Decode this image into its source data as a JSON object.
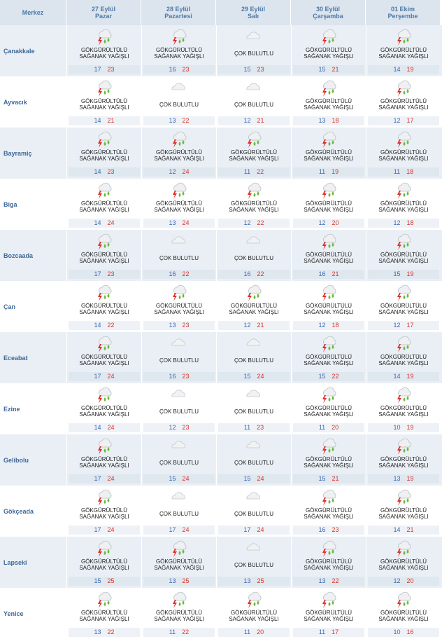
{
  "header": {
    "city_label": "Merkez",
    "days": [
      {
        "date": "27 Eylül",
        "weekday": "Pazar"
      },
      {
        "date": "28 Eylül",
        "weekday": "Pazartesi"
      },
      {
        "date": "29 Eylül",
        "weekday": "Salı"
      },
      {
        "date": "30 Eylül",
        "weekday": "Çarşamba"
      },
      {
        "date": "01 Ekim",
        "weekday": "Perşembe"
      }
    ]
  },
  "rows": [
    {
      "city": "Çanakkale",
      "forecasts": [
        {
          "condition": "GÖKGÜRÜLTÜLÜ\nSAĞANAK YAĞIŞLI",
          "min": 17,
          "max": 23
        },
        {
          "condition": "GÖKGÜRÜLTÜLÜ\nSAĞANAK YAĞIŞLI",
          "min": 16,
          "max": 23
        },
        {
          "condition": "ÇOK BULUTLU",
          "min": 15,
          "max": 23
        },
        {
          "condition": "GÖKGÜRÜLTÜLÜ\nSAĞANAK YAĞIŞLI",
          "min": 15,
          "max": 21
        },
        {
          "condition": "GÖKGÜRÜLTÜLÜ\nSAĞANAK YAĞIŞLI",
          "min": 14,
          "max": 19
        }
      ]
    },
    {
      "city": "Ayvacık",
      "forecasts": [
        {
          "condition": "GÖKGÜRÜLTÜLÜ\nSAĞANAK YAĞIŞLI",
          "min": 14,
          "max": 21
        },
        {
          "condition": "ÇOK BULUTLU",
          "min": 13,
          "max": 22
        },
        {
          "condition": "ÇOK BULUTLU",
          "min": 12,
          "max": 21
        },
        {
          "condition": "GÖKGÜRÜLTÜLÜ\nSAĞANAK YAĞIŞLI",
          "min": 13,
          "max": 18
        },
        {
          "condition": "GÖKGÜRÜLTÜLÜ\nSAĞANAK YAĞIŞLI",
          "min": 12,
          "max": 17
        }
      ]
    },
    {
      "city": "Bayramiç",
      "forecasts": [
        {
          "condition": "GÖKGÜRÜLTÜLÜ\nSAĞANAK YAĞIŞLI",
          "min": 14,
          "max": 23
        },
        {
          "condition": "GÖKGÜRÜLTÜLÜ\nSAĞANAK YAĞIŞLI",
          "min": 12,
          "max": 24
        },
        {
          "condition": "GÖKGÜRÜLTÜLÜ\nSAĞANAK YAĞIŞLI",
          "min": 11,
          "max": 22
        },
        {
          "condition": "GÖKGÜRÜLTÜLÜ\nSAĞANAK YAĞIŞLI",
          "min": 11,
          "max": 19
        },
        {
          "condition": "GÖKGÜRÜLTÜLÜ\nSAĞANAK YAĞIŞLI",
          "min": 11,
          "max": 18
        }
      ]
    },
    {
      "city": "Biga",
      "forecasts": [
        {
          "condition": "GÖKGÜRÜLTÜLÜ\nSAĞANAK YAĞIŞLI",
          "min": 14,
          "max": 24
        },
        {
          "condition": "GÖKGÜRÜLTÜLÜ\nSAĞANAK YAĞIŞLI",
          "min": 13,
          "max": 24
        },
        {
          "condition": "GÖKGÜRÜLTÜLÜ\nSAĞANAK YAĞIŞLI",
          "min": 12,
          "max": 22
        },
        {
          "condition": "GÖKGÜRÜLTÜLÜ\nSAĞANAK YAĞIŞLI",
          "min": 12,
          "max": 20
        },
        {
          "condition": "GÖKGÜRÜLTÜLÜ\nSAĞANAK YAĞIŞLI",
          "min": 12,
          "max": 18
        }
      ]
    },
    {
      "city": "Bozcaada",
      "forecasts": [
        {
          "condition": "GÖKGÜRÜLTÜLÜ\nSAĞANAK YAĞIŞLI",
          "min": 17,
          "max": 23
        },
        {
          "condition": "ÇOK BULUTLU",
          "min": 16,
          "max": 22
        },
        {
          "condition": "ÇOK BULUTLU",
          "min": 16,
          "max": 22
        },
        {
          "condition": "GÖKGÜRÜLTÜLÜ\nSAĞANAK YAĞIŞLI",
          "min": 16,
          "max": 21
        },
        {
          "condition": "GÖKGÜRÜLTÜLÜ\nSAĞANAK YAĞIŞLI",
          "min": 15,
          "max": 19
        }
      ]
    },
    {
      "city": "Çan",
      "forecasts": [
        {
          "condition": "GÖKGÜRÜLTÜLÜ\nSAĞANAK YAĞIŞLI",
          "min": 14,
          "max": 22
        },
        {
          "condition": "GÖKGÜRÜLTÜLÜ\nSAĞANAK YAĞIŞLI",
          "min": 13,
          "max": 23
        },
        {
          "condition": "GÖKGÜRÜLTÜLÜ\nSAĞANAK YAĞIŞLI",
          "min": 12,
          "max": 21
        },
        {
          "condition": "GÖKGÜRÜLTÜLÜ\nSAĞANAK YAĞIŞLI",
          "min": 12,
          "max": 18
        },
        {
          "condition": "GÖKGÜRÜLTÜLÜ\nSAĞANAK YAĞIŞLI",
          "min": 12,
          "max": 17
        }
      ]
    },
    {
      "city": "Eceabat",
      "forecasts": [
        {
          "condition": "GÖKGÜRÜLTÜLÜ\nSAĞANAK YAĞIŞLI",
          "min": 17,
          "max": 24
        },
        {
          "condition": "ÇOK BULUTLU",
          "min": 16,
          "max": 23
        },
        {
          "condition": "ÇOK BULUTLU",
          "min": 15,
          "max": 24
        },
        {
          "condition": "GÖKGÜRÜLTÜLÜ\nSAĞANAK YAĞIŞLI",
          "min": 15,
          "max": 22
        },
        {
          "condition": "GÖKGÜRÜLTÜLÜ\nSAĞANAK YAĞIŞLI",
          "min": 14,
          "max": 19
        }
      ]
    },
    {
      "city": "Ezine",
      "forecasts": [
        {
          "condition": "GÖKGÜRÜLTÜLÜ\nSAĞANAK YAĞIŞLI",
          "min": 14,
          "max": 24
        },
        {
          "condition": "ÇOK BULUTLU",
          "min": 12,
          "max": 23
        },
        {
          "condition": "ÇOK BULUTLU",
          "min": 11,
          "max": 23
        },
        {
          "condition": "GÖKGÜRÜLTÜLÜ\nSAĞANAK YAĞIŞLI",
          "min": 11,
          "max": 20
        },
        {
          "condition": "GÖKGÜRÜLTÜLÜ\nSAĞANAK YAĞIŞLI",
          "min": 10,
          "max": 19
        }
      ]
    },
    {
      "city": "Gelibolu",
      "forecasts": [
        {
          "condition": "GÖKGÜRÜLTÜLÜ\nSAĞANAK YAĞIŞLI",
          "min": 17,
          "max": 24
        },
        {
          "condition": "ÇOK BULUTLU",
          "min": 15,
          "max": 24
        },
        {
          "condition": "ÇOK BULUTLU",
          "min": 15,
          "max": 24
        },
        {
          "condition": "GÖKGÜRÜLTÜLÜ\nSAĞANAK YAĞIŞLI",
          "min": 15,
          "max": 21
        },
        {
          "condition": "GÖKGÜRÜLTÜLÜ\nSAĞANAK YAĞIŞLI",
          "min": 13,
          "max": 19
        }
      ]
    },
    {
      "city": "Gökçeada",
      "forecasts": [
        {
          "condition": "GÖKGÜRÜLTÜLÜ\nSAĞANAK YAĞIŞLI",
          "min": 17,
          "max": 24
        },
        {
          "condition": "ÇOK BULUTLU",
          "min": 17,
          "max": 24
        },
        {
          "condition": "ÇOK BULUTLU",
          "min": 17,
          "max": 24
        },
        {
          "condition": "GÖKGÜRÜLTÜLÜ\nSAĞANAK YAĞIŞLI",
          "min": 16,
          "max": 23
        },
        {
          "condition": "GÖKGÜRÜLTÜLÜ\nSAĞANAK YAĞIŞLI",
          "min": 14,
          "max": 21
        }
      ]
    },
    {
      "city": "Lapseki",
      "forecasts": [
        {
          "condition": "GÖKGÜRÜLTÜLÜ\nSAĞANAK YAĞIŞLI",
          "min": 15,
          "max": 25
        },
        {
          "condition": "GÖKGÜRÜLTÜLÜ\nSAĞANAK YAĞIŞLI",
          "min": 13,
          "max": 25
        },
        {
          "condition": "ÇOK BULUTLU",
          "min": 13,
          "max": 25
        },
        {
          "condition": "GÖKGÜRÜLTÜLÜ\nSAĞANAK YAĞIŞLI",
          "min": 13,
          "max": 22
        },
        {
          "condition": "GÖKGÜRÜLTÜLÜ\nSAĞANAK YAĞIŞLI",
          "min": 12,
          "max": 20
        }
      ]
    },
    {
      "city": "Yenice",
      "forecasts": [
        {
          "condition": "GÖKGÜRÜLTÜLÜ\nSAĞANAK YAĞIŞLI",
          "min": 13,
          "max": 22
        },
        {
          "condition": "GÖKGÜRÜLTÜLÜ\nSAĞANAK YAĞIŞLI",
          "min": 11,
          "max": 22
        },
        {
          "condition": "GÖKGÜRÜLTÜLÜ\nSAĞANAK YAĞIŞLI",
          "min": 11,
          "max": 20
        },
        {
          "condition": "GÖKGÜRÜLTÜLÜ\nSAĞANAK YAĞIŞLI",
          "min": 11,
          "max": 17
        },
        {
          "condition": "GÖKGÜRÜLTÜLÜ\nSAĞANAK YAĞIŞLI",
          "min": 10,
          "max": 16
        }
      ]
    }
  ]
}
